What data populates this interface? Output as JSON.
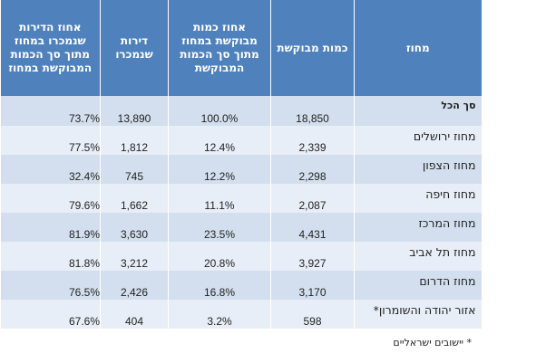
{
  "columns": [
    "מחוז",
    "כמות מבוקשת",
    "אחוז כמות מבוקשת במחוז מתוך סך הכמות המבוקשת",
    "דירות שנמכרו",
    "אחוז הדירות שנמכרו במחוז מתוך סך הכמות המבוקשת במחוז"
  ],
  "rows": [
    {
      "region": "סך הכל",
      "requested": "18,850",
      "requested_pct": "100.0%",
      "sold": "13,890",
      "sold_pct": "73.7%"
    },
    {
      "region": "מחוז ירושלים",
      "requested": "2,339",
      "requested_pct": "12.4%",
      "sold": "1,812",
      "sold_pct": "77.5%"
    },
    {
      "region": "מחוז הצפון",
      "requested": "2,298",
      "requested_pct": "12.2%",
      "sold": "745",
      "sold_pct": "32.4%"
    },
    {
      "region": "מחוז חיפה",
      "requested": "2,087",
      "requested_pct": "11.1%",
      "sold": "1,662",
      "sold_pct": "79.6%"
    },
    {
      "region": "מחוז המרכז",
      "requested": "4,431",
      "requested_pct": "23.5%",
      "sold": "3,630",
      "sold_pct": "81.9%"
    },
    {
      "region": "מחוז תל אביב",
      "requested": "3,927",
      "requested_pct": "20.8%",
      "sold": "3,212",
      "sold_pct": "81.8%"
    },
    {
      "region": "מחוז הדרום",
      "requested": "3,170",
      "requested_pct": "16.8%",
      "sold": "2,426",
      "sold_pct": "76.5%"
    },
    {
      "region": "אזור יהודה והשומרון*",
      "requested": "598",
      "requested_pct": "3.2%",
      "sold": "404",
      "sold_pct": "67.6%"
    }
  ],
  "footnote": "* יישובים ישראליים"
}
